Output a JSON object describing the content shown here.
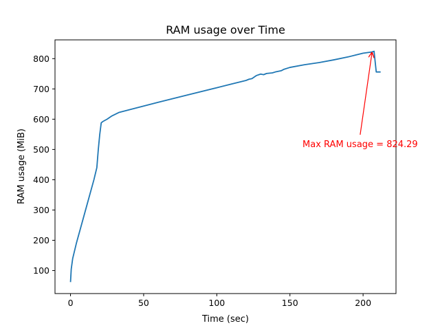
{
  "chart_data": {
    "type": "line",
    "title": "RAM usage over Time",
    "xlabel": "Time (sec)",
    "ylabel": "RAM usage (MiB)",
    "xlim": [
      -10.6,
      222.5
    ],
    "ylim": [
      24,
      862
    ],
    "xticks": [
      0,
      50,
      100,
      150,
      200
    ],
    "yticks": [
      100,
      200,
      300,
      400,
      500,
      600,
      700,
      800
    ],
    "grid": false,
    "series": [
      {
        "color": "#1f77b4",
        "points": [
          [
            0,
            62
          ],
          [
            0.5,
            105
          ],
          [
            1.5,
            140
          ],
          [
            4,
            190
          ],
          [
            8,
            260
          ],
          [
            12,
            330
          ],
          [
            16,
            400
          ],
          [
            18,
            440
          ],
          [
            19,
            500
          ],
          [
            20,
            550
          ],
          [
            21,
            588
          ],
          [
            22,
            592
          ],
          [
            25,
            600
          ],
          [
            28,
            610
          ],
          [
            33,
            622
          ],
          [
            40,
            631
          ],
          [
            60,
            656
          ],
          [
            80,
            680
          ],
          [
            100,
            704
          ],
          [
            110,
            716
          ],
          [
            120,
            728
          ],
          [
            122,
            732
          ],
          [
            124,
            734
          ],
          [
            127,
            744
          ],
          [
            130,
            749
          ],
          [
            132,
            747
          ],
          [
            134,
            751
          ],
          [
            138,
            753
          ],
          [
            140,
            756
          ],
          [
            144,
            760
          ],
          [
            146,
            765
          ],
          [
            150,
            771
          ],
          [
            160,
            780
          ],
          [
            170,
            787
          ],
          [
            180,
            796
          ],
          [
            190,
            806
          ],
          [
            195,
            812
          ],
          [
            200,
            818
          ],
          [
            203,
            820
          ],
          [
            206,
            822
          ],
          [
            207.5,
            824.29
          ],
          [
            209,
            756
          ],
          [
            212,
            756
          ]
        ]
      }
    ],
    "annotations": [
      {
        "text": "Max RAM usage = 824.29",
        "color": "#ff0000",
        "point": [
          207.5,
          824.29
        ],
        "text_at": [
          198,
          535
        ]
      }
    ]
  }
}
